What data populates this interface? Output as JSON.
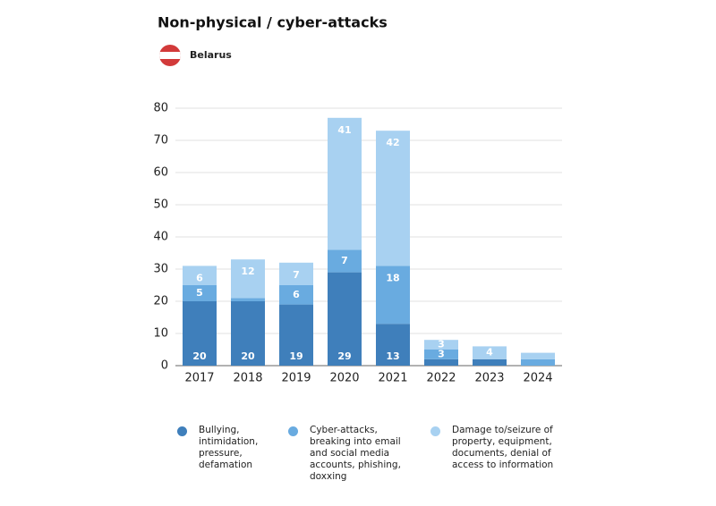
{
  "chart_data": {
    "type": "stacked_bar",
    "title": "Non-physical / cyber-attacks",
    "country": "Belarus",
    "categories": [
      "2017",
      "2018",
      "2019",
      "2020",
      "2021",
      "2022",
      "2023",
      "2024"
    ],
    "series": [
      {
        "name": "Bullying, intimidation, pressure, defamation",
        "color": "#3f7fbb",
        "values": [
          20,
          20,
          19,
          29,
          13,
          2,
          2,
          0
        ],
        "value_labels": [
          "20",
          "20",
          "19",
          "29",
          "13",
          null,
          null,
          null
        ]
      },
      {
        "name": "Cyber-attacks, breaking into email and social media accounts, phishing, doxxing",
        "color": "#69abe0",
        "values": [
          5,
          1,
          6,
          7,
          18,
          3,
          0,
          2
        ],
        "value_labels": [
          "5",
          null,
          "6",
          "7",
          "18",
          "3",
          null,
          null
        ]
      },
      {
        "name": "Damage to/seizure of property, equipment, documents, denial of access to information",
        "color": "#a8d1f1",
        "values": [
          6,
          12,
          7,
          41,
          42,
          3,
          4,
          2
        ],
        "value_labels": [
          "6",
          "12",
          "7",
          "41",
          "42",
          "3",
          "4",
          null
        ]
      }
    ],
    "ylim": [
      0,
      80
    ],
    "yticks": [
      0,
      10,
      20,
      30,
      40,
      50,
      60,
      70,
      80
    ],
    "grid": true
  }
}
